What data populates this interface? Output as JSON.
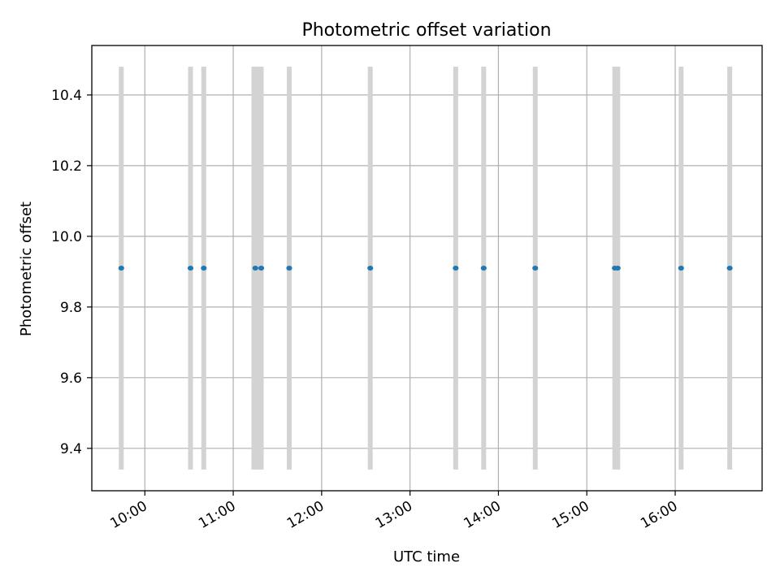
{
  "chart_data": {
    "type": "scatter",
    "title": "Photometric offset variation",
    "xlabel": "UTC time",
    "ylabel": "Photometric offset",
    "x_ticks": [
      "10:00",
      "11:00",
      "12:00",
      "13:00",
      "14:00",
      "15:00",
      "16:00"
    ],
    "y_ticks": [
      "9.4",
      "9.6",
      "9.8",
      "10.0",
      "10.2",
      "10.4"
    ],
    "xlim": [
      "09:24",
      "16:59"
    ],
    "ylim": [
      9.28,
      10.54
    ],
    "grid": true,
    "series": [
      {
        "x": [
          "09:44",
          "10:31",
          "10:40",
          "11:15",
          "11:19",
          "11:38",
          "12:33",
          "13:31",
          "13:50",
          "14:25",
          "15:19",
          "15:21",
          "16:04",
          "16:37"
        ],
        "y": [
          9.91,
          9.91,
          9.91,
          9.91,
          9.91,
          9.91,
          9.91,
          9.91,
          9.91,
          9.91,
          9.91,
          9.91,
          9.91,
          9.91
        ],
        "color": "#1f77b4"
      }
    ],
    "bands": {
      "color": "#d3d3d3",
      "y_range": [
        9.34,
        10.48
      ],
      "x": [
        "09:44",
        "10:31",
        "10:40",
        "11:14",
        "11:17",
        "11:19",
        "11:38",
        "12:33",
        "13:31",
        "13:50",
        "14:25",
        "15:19",
        "15:21",
        "16:04",
        "16:37"
      ]
    }
  }
}
